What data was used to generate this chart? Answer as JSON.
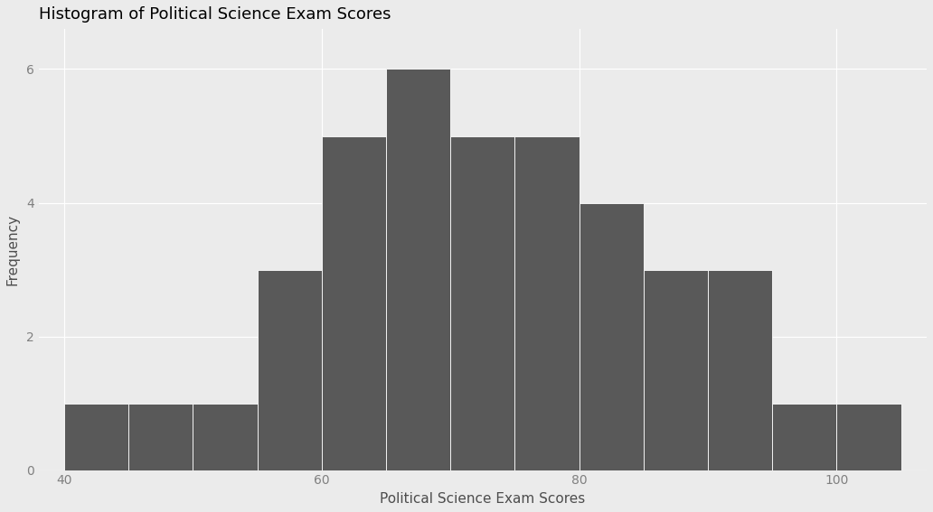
{
  "title": "Histogram of Political Science Exam Scores",
  "xlabel": "Political Science Exam Scores",
  "ylabel": "Frequency",
  "bar_color": "#595959",
  "bar_edgecolor": "#ffffff",
  "background_color": "#ebebeb",
  "panel_background": "#ebebeb",
  "grid_color": "#ffffff",
  "title_color": "#000000",
  "axis_label_color": "#4d4d4d",
  "tick_label_color": "#808080",
  "bins": [
    40,
    45,
    50,
    55,
    60,
    65,
    70,
    75,
    80,
    85,
    90,
    95,
    100,
    105
  ],
  "counts": [
    1,
    1,
    1,
    3,
    5,
    6,
    5,
    5,
    4,
    3,
    3,
    1,
    1
  ],
  "xlim": [
    38,
    107
  ],
  "ylim": [
    0,
    6.6
  ],
  "xticks": [
    40,
    60,
    80,
    100
  ],
  "yticks": [
    0,
    2,
    4,
    6
  ],
  "title_fontsize": 13,
  "axis_label_fontsize": 11,
  "tick_fontsize": 10
}
